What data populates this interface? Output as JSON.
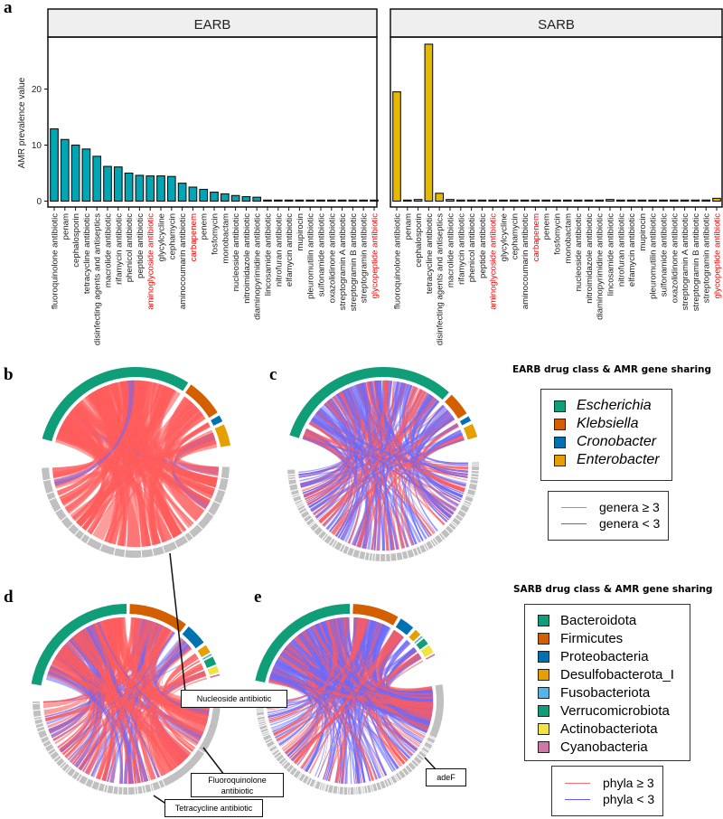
{
  "panel_labels": {
    "a": "a",
    "b": "b",
    "c": "c",
    "d": "d",
    "e": "e"
  },
  "chart_data": [
    {
      "type": "bar",
      "title": "EARB",
      "ylabel": "AMR prevalence value",
      "ylim": [
        0,
        30
      ],
      "yticks": [
        "0",
        "10",
        "20"
      ],
      "color": "#00a6b4",
      "categories": [
        "fluoroquinolone antibiotic",
        "penam",
        "cephalosporin",
        "tetracycline antibiotic",
        "disinfecting agents and antiseptics",
        "macrolide antibiotic",
        "rifamycin antibiotic",
        "phenicol antibiotic",
        "peptide antibiotic",
        "aminoglycoside antibiotic",
        "glycylcycline",
        "cephamycin",
        "aminocoumarin antibiotic",
        "carbapenem",
        "penem",
        "fosfomycin",
        "monobactam",
        "nucleoside antibiotic",
        "nitroimidazole antibiotic",
        "diaminopyrimidine antibiotic",
        "lincosamide antibiotic",
        "nitrofuran antibiotic",
        "elfamycin antibiotic",
        "mupirocin",
        "pleuromutilin antibiotic",
        "sulfonamide antibiotic",
        "oxazolidinone antibiotic",
        "streptogramin A antibiotic",
        "streptogramin B antibiotic",
        "streptogramin antibiotic",
        "glycopeptide antibiotic"
      ],
      "values": [
        12.9,
        11.0,
        10.0,
        9.3,
        8.0,
        6.2,
        6.1,
        5.0,
        4.6,
        4.5,
        4.5,
        4.4,
        3.2,
        2.5,
        2.1,
        1.6,
        1.3,
        1.0,
        0.8,
        0.7,
        0.15,
        0.15,
        0.15,
        0.05,
        0.05,
        0.05,
        0.05,
        0.05,
        0.05,
        0.05,
        0.05
      ]
    },
    {
      "type": "bar",
      "title": "SARB",
      "ylim": [
        0,
        30
      ],
      "color": "#e6b800",
      "categories": [
        "fluoroquinolone antibiotic",
        "penam",
        "cephalosporin",
        "tetracycline antibiotic",
        "disinfecting agents and antiseptics",
        "macrolide antibiotic",
        "rifamycin antibiotic",
        "phenicol antibiotic",
        "peptide antibiotic",
        "aminoglycoside antibiotic",
        "glycylcycline",
        "cephamycin",
        "aminocoumarin antibiotic",
        "carbapenem",
        "penem",
        "fosfomycin",
        "monobactam",
        "nucleoside antibiotic",
        "nitroimidazole antibiotic",
        "diaminopyrimidine antibiotic",
        "lincosamide antibiotic",
        "nitrofuran antibiotic",
        "elfamycin antibiotic",
        "mupirocin",
        "pleuromutilin antibiotic",
        "sulfonamide antibiotic",
        "oxazolidinone antibiotic",
        "streptogramin A antibiotic",
        "streptogramin B antibiotic",
        "streptogramin antibiotic",
        "glycopeptide antibiotic"
      ],
      "values": [
        19.5,
        0.15,
        0.3,
        28.0,
        1.4,
        0.3,
        0.2,
        0.2,
        0.15,
        0.2,
        0.15,
        0.2,
        0.1,
        0.1,
        0.1,
        0.1,
        0.1,
        0.1,
        0.1,
        0.1,
        0.3,
        0.1,
        0.1,
        0.1,
        0.1,
        0.1,
        0.2,
        0.2,
        0.2,
        0.2,
        0.5
      ]
    }
  ],
  "highlight_categories": [
    "aminoglycoside antibiotic",
    "carbapenem",
    "glycopeptide antibiotic"
  ],
  "highlight_color": "#ff0000",
  "earb_legend": {
    "title": "EARB drug class  & AMR gene sharing",
    "taxa": [
      {
        "name": "Escherichia",
        "color": "#109e78"
      },
      {
        "name": "Klebsiella",
        "color": "#d45f00"
      },
      {
        "name": "Cronobacter",
        "color": "#0072b2"
      },
      {
        "name": "Enterobacter",
        "color": "#e69f00"
      }
    ],
    "lines": [
      {
        "label": "genera ≥ 3",
        "color": "#ff6b6b"
      },
      {
        "label": "genera < 3",
        "color": "#5b5bff"
      }
    ]
  },
  "sarb_legend": {
    "title": "SARB drug class  & AMR gene sharing",
    "taxa": [
      {
        "name": "Bacteroidota",
        "color": "#109e78"
      },
      {
        "name": "Firmicutes",
        "color": "#d45f00"
      },
      {
        "name": "Proteobacteria",
        "color": "#0072b2"
      },
      {
        "name": "Desulfobacterota_I",
        "color": "#e69f00"
      },
      {
        "name": "Fusobacteriota",
        "color": "#56b4e9"
      },
      {
        "name": "Verrucomicrobiota",
        "color": "#109e78"
      },
      {
        "name": "Actinobacteriota",
        "color": "#f0e442"
      },
      {
        "name": "Cyanobacteria",
        "color": "#cc79a7"
      }
    ],
    "lines": [
      {
        "label": "phyla ≥ 3",
        "color": "#ff6b6b"
      },
      {
        "label": "phyla < 3",
        "color": "#5b5bff"
      }
    ]
  },
  "annotations": {
    "b": "Nucleoside antibiotic",
    "d_fluoro": "Fluoroquinolone antibiotic",
    "d_tetra": "Tetracycline antibiotic",
    "e": "adeF"
  },
  "ribbon_colors": {
    "high": "#ff5c5c",
    "low": "#6a6aff",
    "segment": "#c0c0c0"
  }
}
